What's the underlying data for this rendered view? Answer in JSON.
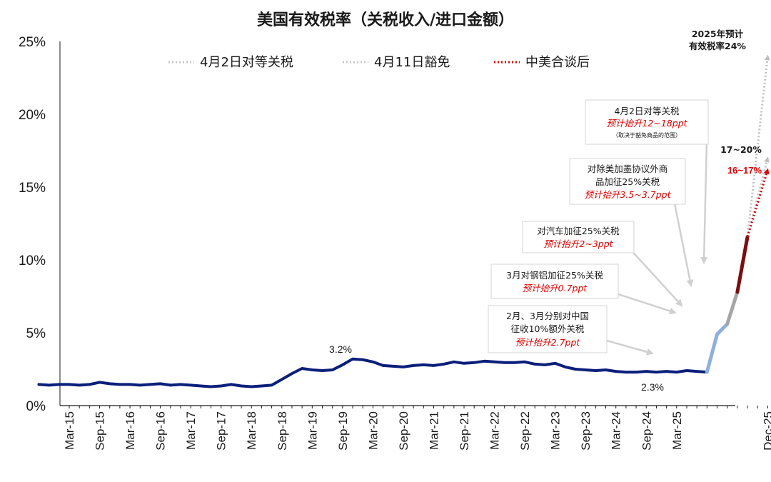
{
  "chart_data": {
    "type": "line",
    "title": "美国有效税率（关税收入/进口金额）",
    "ylabel": "",
    "ylim": [
      0,
      25
    ],
    "y_ticks": [
      "0%",
      "5%",
      "10%",
      "15%",
      "20%",
      "25%"
    ],
    "x_ticks": [
      "Mar-15",
      "Sep-15",
      "Mar-16",
      "Sep-16",
      "Mar-17",
      "Sep-17",
      "Mar-18",
      "Sep-18",
      "Mar-19",
      "Sep-19",
      "Mar-20",
      "Sep-20",
      "Mar-21",
      "Sep-21",
      "Mar-22",
      "Sep-22",
      "Mar-23",
      "Sep-23",
      "Mar-24",
      "Sep-24",
      "Mar-25",
      "Dec-25"
    ],
    "grid": false,
    "legend_position": "top",
    "legend": [
      "4月2日对等关税",
      "4月11日豁免",
      "中美合谈后"
    ],
    "series": [
      {
        "color": "#0a1f7a",
        "points": [
          [
            -3,
            1.45
          ],
          [
            -2,
            1.4
          ],
          [
            -1,
            1.45
          ],
          [
            0,
            1.45
          ],
          [
            1,
            1.4
          ],
          [
            2,
            1.45
          ],
          [
            3,
            1.6
          ],
          [
            4,
            1.5
          ],
          [
            5,
            1.45
          ],
          [
            6,
            1.45
          ],
          [
            7,
            1.4
          ],
          [
            8,
            1.45
          ],
          [
            9,
            1.5
          ],
          [
            10,
            1.4
          ],
          [
            11,
            1.45
          ],
          [
            12,
            1.4
          ],
          [
            13,
            1.35
          ],
          [
            14,
            1.3
          ],
          [
            15,
            1.35
          ],
          [
            16,
            1.45
          ],
          [
            17,
            1.35
          ],
          [
            18,
            1.3
          ],
          [
            19,
            1.35
          ],
          [
            20,
            1.4
          ],
          [
            21,
            1.8
          ],
          [
            22,
            2.2
          ],
          [
            23,
            2.55
          ],
          [
            24,
            2.45
          ],
          [
            25,
            2.4
          ],
          [
            26,
            2.45
          ],
          [
            27,
            2.8
          ],
          [
            28,
            3.2
          ],
          [
            29,
            3.15
          ],
          [
            30,
            3.0
          ],
          [
            31,
            2.75
          ],
          [
            32,
            2.7
          ],
          [
            33,
            2.65
          ],
          [
            34,
            2.75
          ],
          [
            35,
            2.8
          ],
          [
            36,
            2.75
          ],
          [
            37,
            2.85
          ],
          [
            38,
            3.0
          ],
          [
            39,
            2.9
          ],
          [
            40,
            2.95
          ],
          [
            41,
            3.05
          ],
          [
            42,
            3.0
          ],
          [
            43,
            2.95
          ],
          [
            44,
            2.95
          ],
          [
            45,
            3.0
          ],
          [
            46,
            2.85
          ],
          [
            47,
            2.8
          ],
          [
            48,
            2.9
          ],
          [
            49,
            2.65
          ],
          [
            50,
            2.5
          ],
          [
            51,
            2.45
          ],
          [
            52,
            2.4
          ],
          [
            53,
            2.45
          ],
          [
            54,
            2.35
          ],
          [
            55,
            2.3
          ],
          [
            56,
            2.3
          ],
          [
            57,
            2.35
          ],
          [
            58,
            2.3
          ],
          [
            59,
            2.35
          ],
          [
            60,
            2.3
          ],
          [
            61,
            2.4
          ],
          [
            62,
            2.35
          ],
          [
            63,
            2.3
          ]
        ]
      },
      {
        "color": "#8fb0dc",
        "points": [
          [
            63,
            2.3
          ],
          [
            64,
            4.9
          ],
          [
            65,
            5.6
          ]
        ]
      },
      {
        "color": "#a6a6a6",
        "points": [
          [
            65,
            5.6
          ],
          [
            66,
            7.8
          ]
        ]
      },
      {
        "color": "#7a0f0f",
        "points": [
          [
            66,
            7.8
          ],
          [
            67,
            11.6
          ]
        ]
      },
      {
        "color": "#bfbfbf",
        "dashed": true,
        "points": [
          [
            67,
            11.6
          ],
          [
            69,
            24
          ]
        ]
      },
      {
        "color": "#bfbfbf",
        "dashed": true,
        "points": [
          [
            67,
            11.6
          ],
          [
            69,
            17
          ]
        ]
      },
      {
        "color": "#e00000",
        "dashed": true,
        "points": [
          [
            67,
            11.6
          ],
          [
            69,
            16.2
          ]
        ]
      }
    ]
  },
  "annotations": {
    "label_peak": "3.2%",
    "label_low": "2.3%",
    "label_2025_line1": "2025年预计",
    "label_2025_line2": "有效税率24%",
    "label_17_20": "17~20%",
    "label_16_17": "16~17%",
    "box1_line1": "4月2日对等关税",
    "box1_red": "预计抬升12~18ppt",
    "box1_small": "（取决于豁免商品的范围）",
    "box2_line1": "对除美加墨协议外商",
    "box2_line2": "品加征25%关税",
    "box2_red": "预计抬升3.5~3.7ppt",
    "box3_line1": "对汽车加征25%关税",
    "box3_red": "预计抬升2~3ppt",
    "box4_line1": "3月对钢铝加征25%关税",
    "box4_red": "预计抬升0.7ppt",
    "box5_line1": "2月、3月分别对中国",
    "box5_line2": "征收10%额外关税",
    "box5_red": "预计抬升2.7ppt"
  }
}
